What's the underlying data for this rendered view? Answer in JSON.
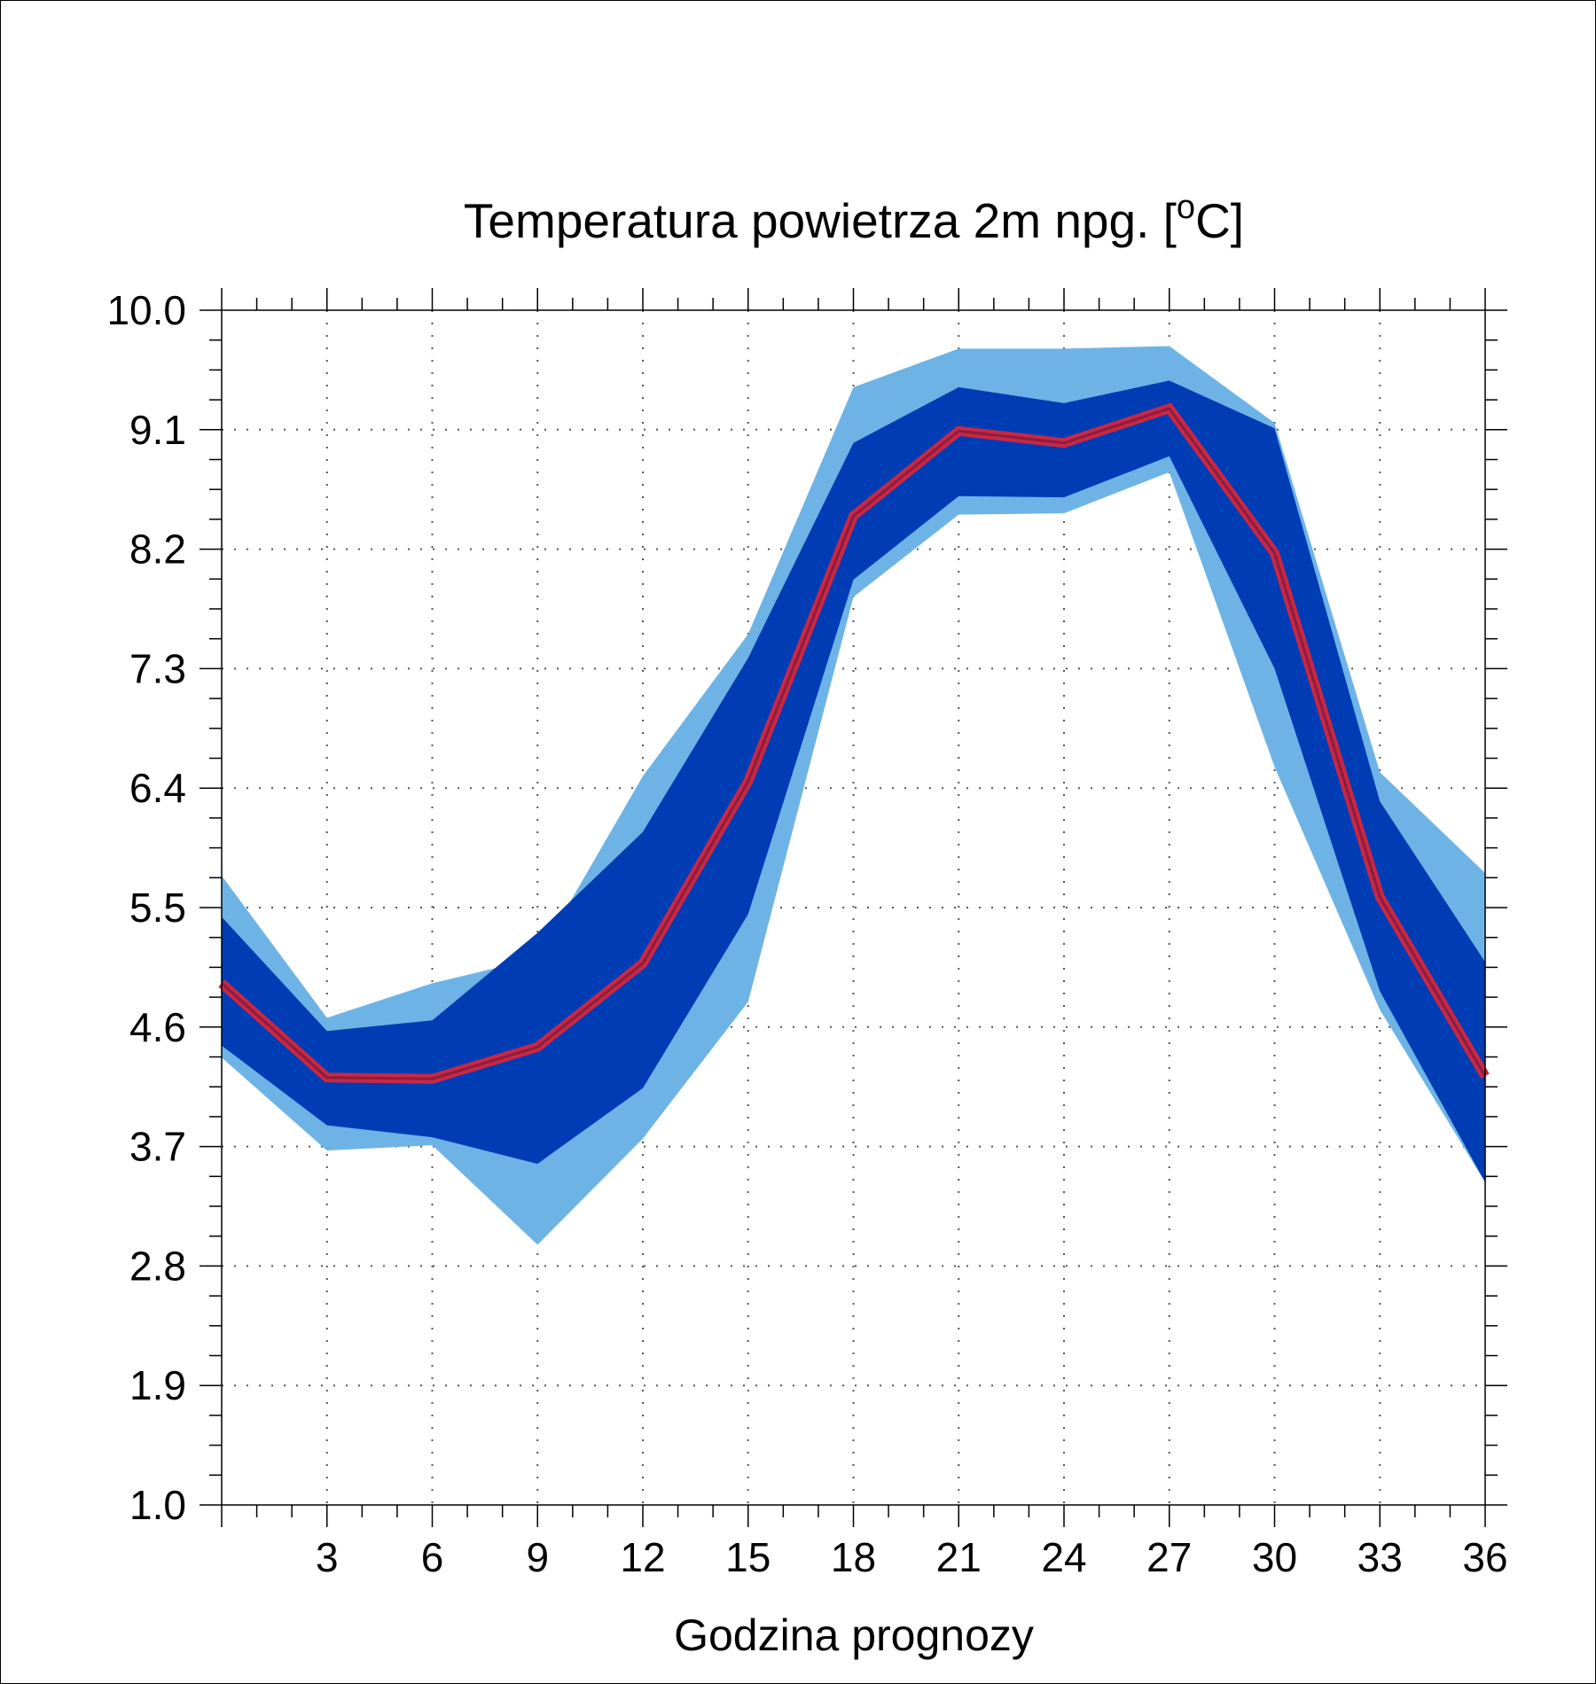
{
  "chart_data": {
    "type": "area",
    "title_main": "Temperatura powietrza 2m npg. [",
    "title_sup": "o",
    "title_end": "C]",
    "xlabel": "Godzina prognozy",
    "ylabel": "",
    "xlim": [
      0,
      36
    ],
    "ylim": [
      1.0,
      10.0
    ],
    "x_ticks": [
      "3",
      "6",
      "9",
      "12",
      "15",
      "18",
      "21",
      "24",
      "27",
      "30",
      "33",
      "36"
    ],
    "x_tick_values": [
      3,
      6,
      9,
      12,
      15,
      18,
      21,
      24,
      27,
      30,
      33,
      36
    ],
    "y_ticks": [
      "10.0",
      "9.1",
      "8.2",
      "7.3",
      "6.4",
      "5.5",
      "4.6",
      "3.7",
      "2.8",
      "1.9",
      "1.0"
    ],
    "y_tick_values": [
      10.0,
      9.1,
      8.2,
      7.3,
      6.4,
      5.5,
      4.6,
      3.7,
      2.8,
      1.9,
      1.0
    ],
    "grid": "dotted",
    "x": [
      0,
      3,
      6,
      9,
      12,
      15,
      18,
      21,
      24,
      27,
      30,
      33,
      36
    ],
    "series": [
      {
        "role": "outer-upper",
        "values": [
          5.74,
          4.67,
          4.93,
          5.12,
          6.49,
          7.56,
          9.42,
          9.71,
          9.71,
          9.73,
          9.15,
          6.52,
          5.76
        ]
      },
      {
        "role": "inner-upper",
        "values": [
          5.43,
          4.57,
          4.65,
          5.31,
          6.07,
          7.38,
          9.0,
          9.42,
          9.3,
          9.47,
          9.11,
          6.3,
          5.09
        ]
      },
      {
        "role": "median",
        "values": [
          4.93,
          4.22,
          4.21,
          4.45,
          5.08,
          6.45,
          8.45,
          9.09,
          9.0,
          9.26,
          8.17,
          5.58,
          4.23
        ]
      },
      {
        "role": "inner-lower",
        "values": [
          4.46,
          3.86,
          3.77,
          3.57,
          4.14,
          5.45,
          7.97,
          8.6,
          8.59,
          8.9,
          7.3,
          4.87,
          3.43
        ]
      },
      {
        "role": "outer-lower",
        "values": [
          4.37,
          3.67,
          3.71,
          2.96,
          3.76,
          4.79,
          7.84,
          8.46,
          8.47,
          8.78,
          6.56,
          4.73,
          3.43
        ]
      }
    ],
    "colors": {
      "outer_band": "#6eb3e6",
      "inner_band": "#003cb4",
      "median_line": "#c82846",
      "median_core": "#8c1e3c"
    }
  }
}
